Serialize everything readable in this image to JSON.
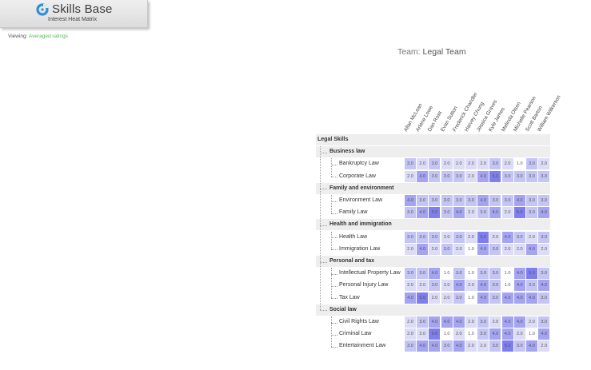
{
  "header": {
    "brand": "Skills Base",
    "subtitle": "Interest Heat Matrix"
  },
  "viewing": {
    "label": "Viewing:",
    "value": "Averaged ratings"
  },
  "team": {
    "label": "Team:",
    "name": "Legal Team"
  },
  "colors": {
    "scale": {
      "1.0": "#ffffff",
      "2.0": "#dcdcf7",
      "3.0": "#c4c4f5",
      "4.0": "#a4a4f3",
      "5.0": "#7e7ef0"
    },
    "brand_blue": "#2f8fd8",
    "viewing_green": "#5cb85c"
  },
  "people": [
    "Allan McLean",
    "Arlene Lowe",
    "Dan Ross",
    "Evan Sutton",
    "Frederick Chandler",
    "Harvey Chung",
    "Jessica Graves",
    "Kyle James",
    "Melinda Olsen",
    "Michelle Pearson",
    "Scott Barton",
    "William Wilkerson"
  ],
  "matrix": {
    "root": "Legal Skills",
    "groups": [
      {
        "name": "Business law",
        "skills": [
          {
            "name": "Bankruptcy Law",
            "ratings": [
              "3.0",
              "2.0",
              "3.0",
              "2.0",
              "2.0",
              "2.0",
              "2.0",
              "3.0",
              "2.0",
              "1.0",
              "3.0",
              "2.0"
            ]
          },
          {
            "name": "Corporate Law",
            "ratings": [
              "2.0",
              "4.0",
              "3.0",
              "3.0",
              "3.0",
              "2.0",
              "4.0",
              "5.0",
              "3.0",
              "3.0",
              "3.0",
              "3.0"
            ]
          }
        ]
      },
      {
        "name": "Family and environment",
        "skills": [
          {
            "name": "Environment Law",
            "ratings": [
              "4.0",
              "3.0",
              "3.0",
              "3.0",
              "3.0",
              "3.0",
              "4.0",
              "3.0",
              "3.0",
              "4.0",
              "3.0",
              "3.0"
            ]
          },
          {
            "name": "Family Law",
            "ratings": [
              "3.0",
              "4.0",
              "5.0",
              "3.0",
              "4.0",
              "2.0",
              "3.0",
              "4.0",
              "2.0",
              "5.0",
              "3.0",
              "4.0"
            ]
          }
        ]
      },
      {
        "name": "Health and immigration",
        "skills": [
          {
            "name": "Health Law",
            "ratings": [
              "3.0",
              "3.0",
              "3.0",
              "2.0",
              "3.0",
              "2.0",
              "5.0",
              "2.0",
              "4.0",
              "3.0",
              "2.0",
              "3.0"
            ]
          },
          {
            "name": "Immigration Law",
            "ratings": [
              "2.0",
              "4.0",
              "2.0",
              "3.0",
              "2.0",
              "1.0",
              "4.0",
              "3.0",
              "2.0",
              "2.0",
              "4.0",
              "2.0"
            ]
          }
        ]
      },
      {
        "name": "Personal and tax",
        "skills": [
          {
            "name": "Intellectual Property Law",
            "ratings": [
              "3.0",
              "3.0",
              "4.0",
              "1.0",
              "3.0",
              "1.0",
              "3.0",
              "3.0",
              "1.0",
              "4.0",
              "5.0",
              "3.0"
            ]
          },
          {
            "name": "Personal Injury Law",
            "ratings": [
              "2.0",
              "2.0",
              "3.0",
              "2.0",
              "4.0",
              "2.0",
              "4.0",
              "3.0",
              "1.0",
              "4.0",
              "3.0",
              "4.0"
            ]
          },
          {
            "name": "Tax Law",
            "ratings": [
              "4.0",
              "5.0",
              "2.0",
              "2.0",
              "3.0",
              "1.0",
              "4.0",
              "3.0",
              "4.0",
              "4.0",
              "4.0",
              "3.0"
            ]
          }
        ]
      },
      {
        "name": "Social law",
        "skills": [
          {
            "name": "Civil Rights Law",
            "ratings": [
              "2.0",
              "3.0",
              "4.0",
              "4.0",
              "4.0",
              "2.0",
              "3.0",
              "2.0",
              "4.0",
              "4.0",
              "2.0",
              "3.0"
            ]
          },
          {
            "name": "Criminal Law",
            "ratings": [
              "2.0",
              "2.0",
              "5.0",
              "1.0",
              "2.0",
              "1.0",
              "3.0",
              "4.0",
              "4.0",
              "2.0",
              "1.0",
              "4.0"
            ]
          },
          {
            "name": "Entertainment Law",
            "ratings": [
              "3.0",
              "4.0",
              "4.0",
              "3.0",
              "4.0",
              "2.0",
              "2.0",
              "3.0",
              "5.0",
              "3.0",
              "4.0",
              "2.0"
            ]
          }
        ]
      }
    ]
  }
}
